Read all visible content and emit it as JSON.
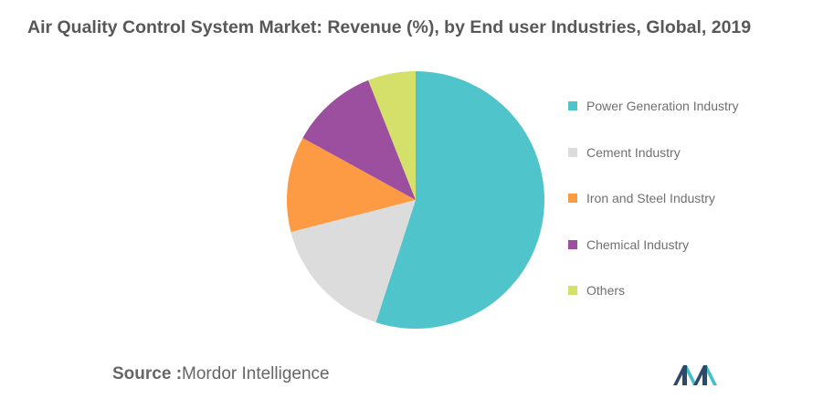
{
  "title": "Air Quality Control System Market: Revenue (%), by End user Industries, Global, 2019",
  "source": {
    "label": "Source :",
    "value": "Mordor Intelligence"
  },
  "colors": {
    "title": "#585858",
    "legend_text": "#707070",
    "source_text": "#666666",
    "logo_dark": "#2e4a6b",
    "logo_teal": "#3fc1c9"
  },
  "logo_icon": "mordor-intelligence-logo",
  "chart_data": {
    "type": "pie",
    "title": "Air Quality Control System Market: Revenue (%), by End user Industries, Global, 2019",
    "legend_position": "right",
    "start_angle_deg": 0,
    "direction": "clockwise",
    "series": [
      {
        "name": "Power Generation Industry",
        "value": 55,
        "color": "#4fc4cb"
      },
      {
        "name": "Cement Industry",
        "value": 16,
        "color": "#dcdcdc"
      },
      {
        "name": "Iron and Steel Industry",
        "value": 12,
        "color": "#fd9b45"
      },
      {
        "name": "Chemical Industry",
        "value": 11,
        "color": "#9c4f9f"
      },
      {
        "name": "Others",
        "value": 6,
        "color": "#d4e06a"
      }
    ]
  }
}
